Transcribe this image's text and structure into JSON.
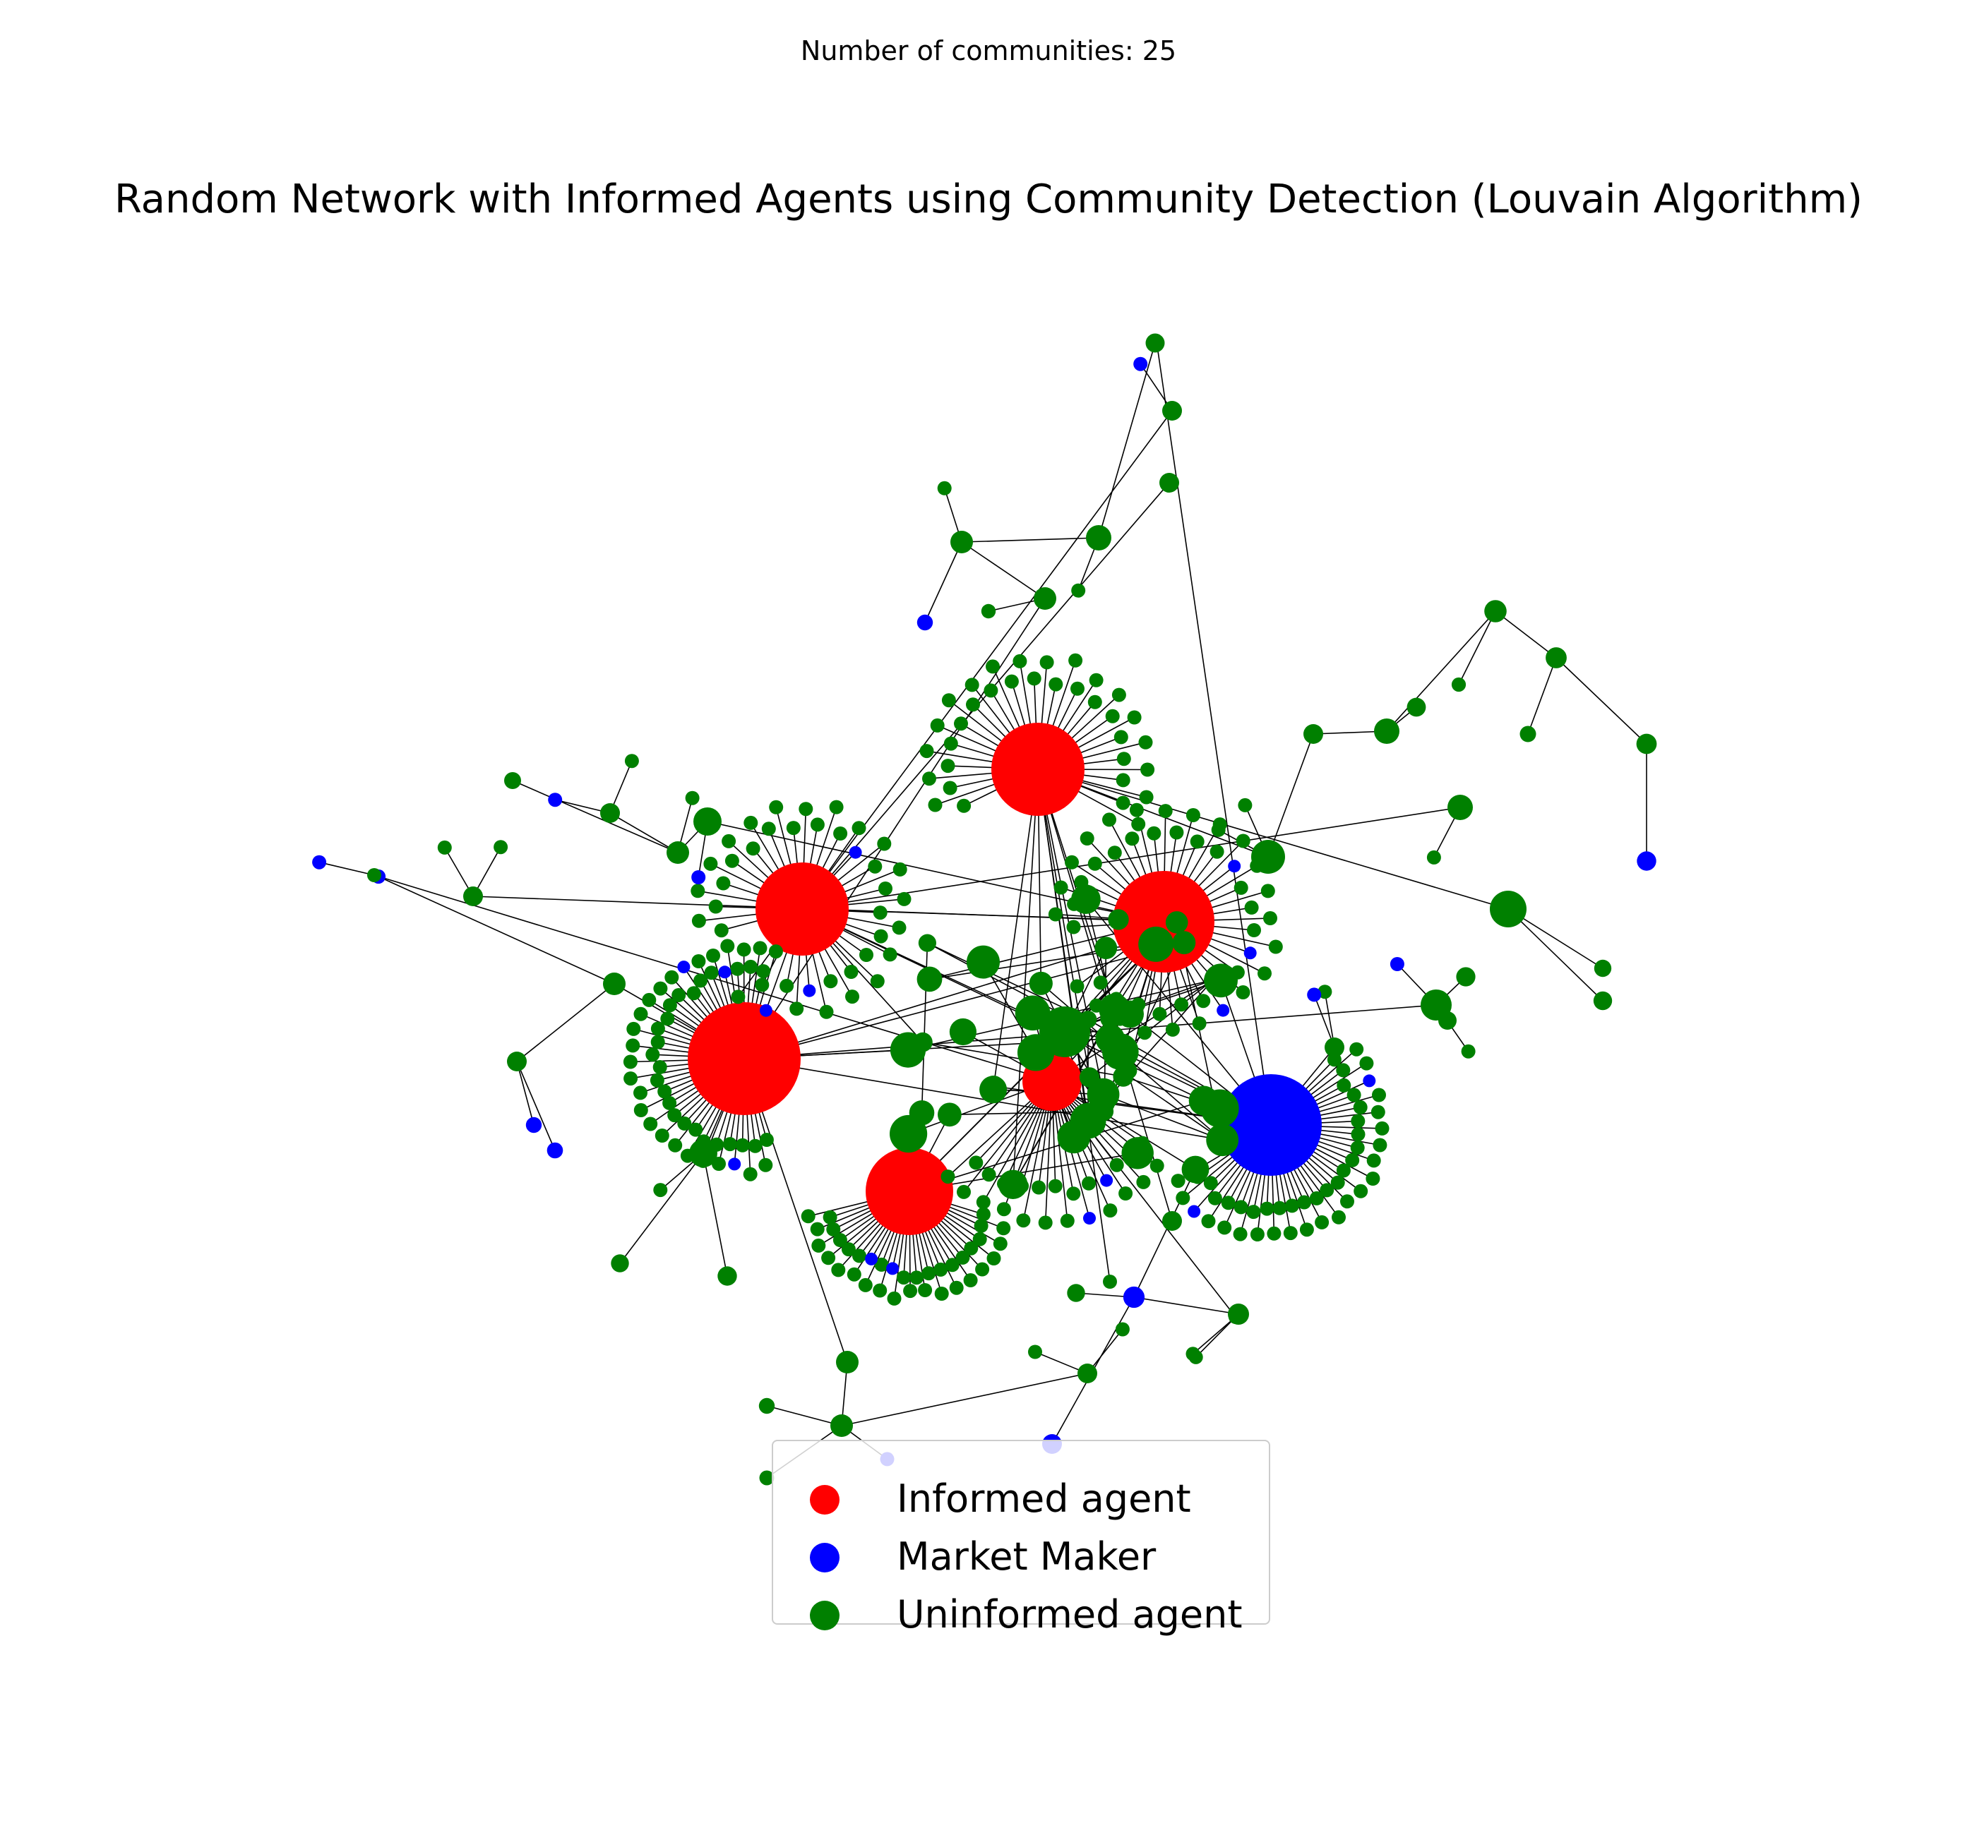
{
  "header": {
    "subtitle": "Number of communities: 25",
    "title": "Random Network with Informed Agents using Community Detection (Louvain Algorithm)"
  },
  "colors": {
    "informed": "#ff0000",
    "market_maker": "#0000ff",
    "uninformed": "#008000",
    "edge": "#000000"
  },
  "legend": {
    "items": [
      {
        "label": "Informed agent",
        "role": "informed"
      },
      {
        "label": "Market Maker",
        "role": "market_maker"
      },
      {
        "label": "Uninformed agent",
        "role": "uninformed"
      }
    ]
  }
}
